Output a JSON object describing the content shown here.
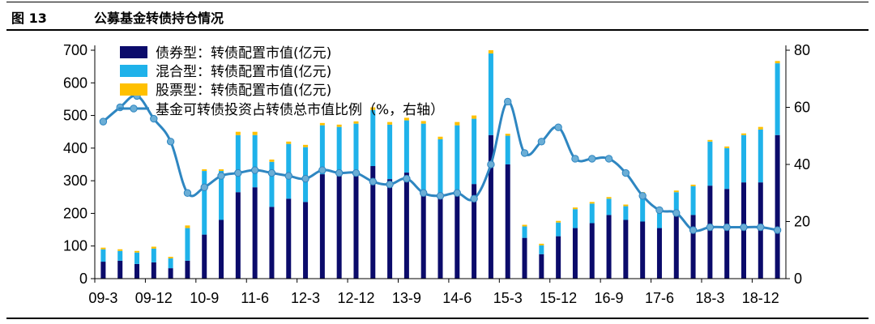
{
  "header": {
    "figure_no": "图 13",
    "title": "公募基金转债持仓情况"
  },
  "colors": {
    "bond": "#0B0B6B",
    "mixed": "#1FB2EA",
    "stock": "#FFC000",
    "line": "#2E86C1",
    "marker": "#6BAED6"
  },
  "chart_data": {
    "type": "bar",
    "stacked": true,
    "categories": [
      "09-3",
      "09-6",
      "09-9",
      "09-12",
      "10-3",
      "10-6",
      "10-9",
      "10-12",
      "11-3",
      "11-6",
      "11-9",
      "11-12",
      "12-3",
      "12-6",
      "12-9",
      "12-12",
      "13-3",
      "13-6",
      "13-9",
      "13-12",
      "14-3",
      "14-6",
      "14-9",
      "14-12",
      "15-3",
      "15-6",
      "15-9",
      "15-12",
      "16-3",
      "16-6",
      "16-9",
      "16-12",
      "17-3",
      "17-6",
      "17-9",
      "17-12",
      "18-3",
      "18-6",
      "18-9",
      "18-12",
      "19-3"
    ],
    "x_tick_labels": [
      "09-3",
      "09-12",
      "10-9",
      "11-6",
      "12-3",
      "12-12",
      "13-9",
      "14-6",
      "15-3",
      "15-12",
      "16-9",
      "17-6",
      "18-3",
      "18-12"
    ],
    "series": [
      {
        "name": "债券型：转债配置市值(亿元)",
        "axis": "left",
        "values": [
          52,
          55,
          45,
          50,
          32,
          55,
          135,
          180,
          265,
          280,
          220,
          245,
          235,
          320,
          315,
          320,
          345,
          305,
          325,
          255,
          245,
          270,
          290,
          440,
          350,
          125,
          75,
          130,
          155,
          170,
          195,
          180,
          175,
          155,
          210,
          195,
          285,
          275,
          295,
          295,
          440
        ]
      },
      {
        "name": "混合型：转债配置市值(亿元)",
        "axis": "left",
        "values": [
          38,
          30,
          35,
          42,
          30,
          100,
          195,
          150,
          175,
          160,
          138,
          168,
          168,
          150,
          150,
          155,
          172,
          167,
          160,
          220,
          182,
          200,
          200,
          250,
          88,
          35,
          27,
          42,
          58,
          60,
          50,
          42,
          85,
          45,
          55,
          88,
          135,
          125,
          145,
          162,
          220
        ]
      },
      {
        "name": "股票型：转债配置市值(亿元)",
        "axis": "left",
        "values": [
          5,
          5,
          5,
          6,
          5,
          8,
          5,
          5,
          10,
          10,
          7,
          7,
          7,
          7,
          7,
          7,
          8,
          8,
          8,
          8,
          8,
          10,
          10,
          10,
          6,
          5,
          5,
          5,
          5,
          5,
          5,
          5,
          5,
          5,
          5,
          5,
          5,
          5,
          5,
          8,
          7
        ]
      },
      {
        "name": "基金可转债投资占转债总市值比例（%，右轴）",
        "axis": "right",
        "type": "line",
        "values": [
          55,
          60,
          64,
          56,
          48,
          30,
          32,
          36,
          37,
          38,
          37,
          36,
          35,
          38,
          37,
          37,
          34,
          33,
          35,
          30,
          29,
          30,
          28,
          40,
          62,
          44,
          48,
          53,
          42,
          42,
          42,
          37,
          29,
          24,
          23,
          17,
          18,
          18,
          18,
          18,
          17
        ]
      }
    ],
    "left_axis": {
      "min": 0,
      "max": 700,
      "ticks": [
        0,
        100,
        200,
        300,
        400,
        500,
        600,
        700
      ]
    },
    "right_axis": {
      "min": 0,
      "max": 80,
      "ticks": [
        0,
        20,
        40,
        60,
        80
      ]
    },
    "legend_position": "top-left",
    "grid": false
  }
}
